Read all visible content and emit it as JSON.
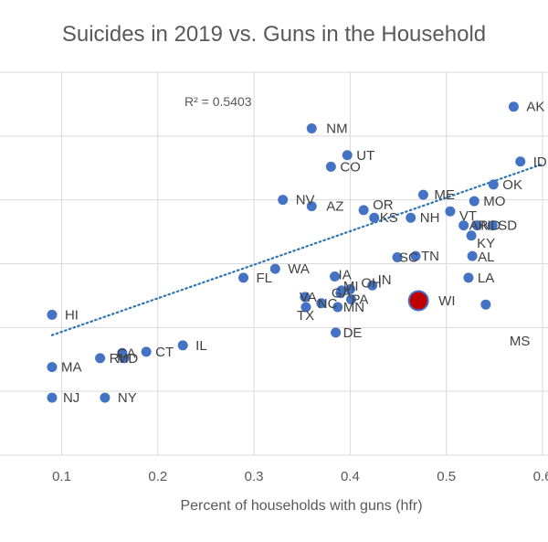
{
  "chart_data": {
    "type": "scatter",
    "title": "Suicides in 2019 vs. Guns in the Household",
    "xlabel": "Percent of households with guns (hfr)",
    "ylabel": "",
    "xlim": [
      0.0,
      0.6
    ],
    "ylim": [
      0.0,
      30.0
    ],
    "x_ticks": [
      "0.1",
      "0.2",
      "0.3",
      "0.4",
      "0.5",
      "0.6"
    ],
    "grid": true,
    "trendline": {
      "type": "linear",
      "style": "dotted",
      "color": "#2e75b6",
      "x_start": 0.09,
      "y_start": 9.4,
      "x_end": 0.6,
      "y_end": 22.8
    },
    "annotation": "R² = 0.5403",
    "colors": {
      "point": "#4472c4",
      "highlight": "#c00000",
      "trend": "#2e75b6"
    },
    "highlight_label": "WI",
    "points": [
      {
        "label": "AK",
        "x": 0.57,
        "y": 27.3
      },
      {
        "label": "ID",
        "x": 0.577,
        "y": 23.0
      },
      {
        "label": "OK",
        "x": 0.549,
        "y": 21.2
      },
      {
        "label": "MO",
        "x": 0.529,
        "y": 19.9
      },
      {
        "label": "VT",
        "x": 0.504,
        "y": 19.1
      },
      {
        "label": "AR",
        "x": 0.518,
        "y": 18.0
      },
      {
        "label": "ND",
        "x": 0.532,
        "y": 18.0
      },
      {
        "label": "SD",
        "x": 0.548,
        "y": 18.0
      },
      {
        "label": "KY",
        "x": 0.526,
        "y": 17.2
      },
      {
        "label": "AL",
        "x": 0.527,
        "y": 15.6
      },
      {
        "label": "LA",
        "x": 0.523,
        "y": 13.9
      },
      {
        "label": "MS",
        "x": 0.541,
        "y": 11.8
      },
      {
        "label": "WI",
        "x": 0.471,
        "y": 12.1
      },
      {
        "label": "ME",
        "x": 0.476,
        "y": 20.4
      },
      {
        "label": "NH",
        "x": 0.463,
        "y": 18.6
      },
      {
        "label": "KS",
        "x": 0.425,
        "y": 18.6
      },
      {
        "label": "OR",
        "x": 0.414,
        "y": 19.2
      },
      {
        "label": "TN",
        "x": 0.468,
        "y": 15.6
      },
      {
        "label": "SC",
        "x": 0.449,
        "y": 15.5
      },
      {
        "label": "IN",
        "x": 0.423,
        "y": 13.3
      },
      {
        "label": "OH",
        "x": 0.4,
        "y": 13.0
      },
      {
        "label": "MI",
        "x": 0.391,
        "y": 12.9
      },
      {
        "label": "GA",
        "x": 0.39,
        "y": 12.7
      },
      {
        "label": "PA",
        "x": 0.401,
        "y": 12.2
      },
      {
        "label": "IA",
        "x": 0.384,
        "y": 14.0
      },
      {
        "label": "VA",
        "x": 0.353,
        "y": 12.4
      },
      {
        "label": "NC",
        "x": 0.37,
        "y": 11.9
      },
      {
        "label": "TX",
        "x": 0.354,
        "y": 11.6
      },
      {
        "label": "MN",
        "x": 0.387,
        "y": 11.6
      },
      {
        "label": "DE",
        "x": 0.385,
        "y": 9.6
      },
      {
        "label": "NM",
        "x": 0.36,
        "y": 25.6
      },
      {
        "label": "UT",
        "x": 0.397,
        "y": 23.5
      },
      {
        "label": "CO",
        "x": 0.38,
        "y": 22.6
      },
      {
        "label": "NV",
        "x": 0.33,
        "y": 20.0
      },
      {
        "label": "AZ",
        "x": 0.36,
        "y": 19.5
      },
      {
        "label": "WA",
        "x": 0.322,
        "y": 14.6
      },
      {
        "label": "FL",
        "x": 0.289,
        "y": 13.9
      },
      {
        "label": "IL",
        "x": 0.226,
        "y": 8.6
      },
      {
        "label": "CT",
        "x": 0.188,
        "y": 8.1
      },
      {
        "label": "CA",
        "x": 0.163,
        "y": 8.0
      },
      {
        "label": "MD",
        "x": 0.165,
        "y": 7.6
      },
      {
        "label": "RI",
        "x": 0.14,
        "y": 7.6
      },
      {
        "label": "HI",
        "x": 0.09,
        "y": 11.0
      },
      {
        "label": "MA",
        "x": 0.09,
        "y": 6.9
      },
      {
        "label": "NJ",
        "x": 0.09,
        "y": 4.5
      },
      {
        "label": "NY",
        "x": 0.145,
        "y": 4.5
      }
    ]
  }
}
